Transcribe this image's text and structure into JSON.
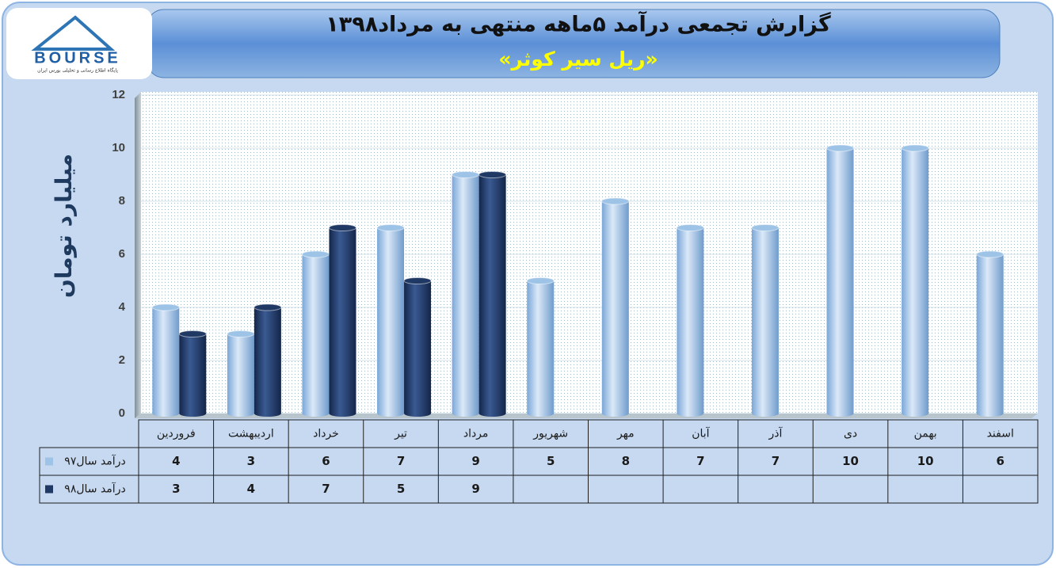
{
  "logo": {
    "name": "BOURSE",
    "tagline": "پایگاه اطلاع رسانی و تحلیلی بورس ایران"
  },
  "chart_data": {
    "type": "bar",
    "title": "گزارش تجمعی درآمد ۵ماهه منتهی به مرداد۱۳۹۸",
    "subtitle": "«ریل سیر کوثر»",
    "y_label": "میلیارد تومان",
    "categories": [
      "فروردین",
      "اردیبهشت",
      "خرداد",
      "تیر",
      "مرداد",
      "شهریور",
      "مهر",
      "آبان",
      "آذر",
      "دی",
      "بهمن",
      "اسفند"
    ],
    "series": [
      {
        "name": "درآمد سال۹۷",
        "color": "#9dc3e6",
        "values": [
          4,
          3,
          6,
          7,
          9,
          5,
          8,
          7,
          7,
          10,
          10,
          6
        ]
      },
      {
        "name": "درآمد سال۹۸",
        "color": "#1f3864",
        "values": [
          3,
          4,
          7,
          5,
          9,
          null,
          null,
          null,
          null,
          null,
          null,
          null
        ]
      }
    ],
    "ylim": [
      0,
      12
    ],
    "yticks": [
      0,
      2,
      4,
      6,
      8,
      10,
      12
    ],
    "grid": true
  }
}
